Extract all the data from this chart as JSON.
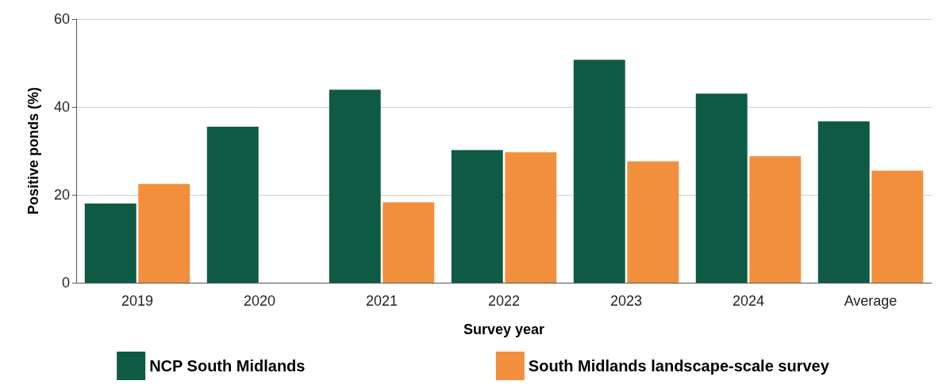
{
  "chart_data": {
    "type": "bar",
    "xlabel": "Survey year",
    "ylabel": "Positive ponds (%)",
    "categories": [
      "2019",
      "2020",
      "2021",
      "2022",
      "2023",
      "2024",
      "Average"
    ],
    "series": [
      {
        "name": "NCP South Midlands",
        "color": "#0f5a44",
        "values": [
          18.0,
          35.5,
          43.9,
          30.2,
          50.7,
          43.0,
          36.7
        ]
      },
      {
        "name": "South Midlands landscape-scale survey",
        "color": "#f28f3c",
        "values": [
          22.5,
          null,
          18.3,
          29.7,
          27.6,
          28.8,
          25.5
        ]
      }
    ],
    "ylim": [
      0,
      60
    ],
    "yticks": [
      0,
      20,
      40,
      60
    ],
    "grid": "y",
    "legend": "bottom"
  }
}
